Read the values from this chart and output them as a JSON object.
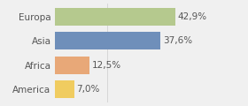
{
  "categories": [
    "Europa",
    "Asia",
    "Africa",
    "America"
  ],
  "values": [
    42.9,
    37.6,
    12.5,
    7.0
  ],
  "labels": [
    "42,9%",
    "37,6%",
    "12,5%",
    "7,0%"
  ],
  "bar_colors": [
    "#b5c98e",
    "#6f8fba",
    "#e8a878",
    "#f0cc60"
  ],
  "background_color": "#f0f0f0",
  "xlim": [
    0,
    58
  ],
  "bar_height": 0.72,
  "label_fontsize": 7.5,
  "category_fontsize": 7.5
}
